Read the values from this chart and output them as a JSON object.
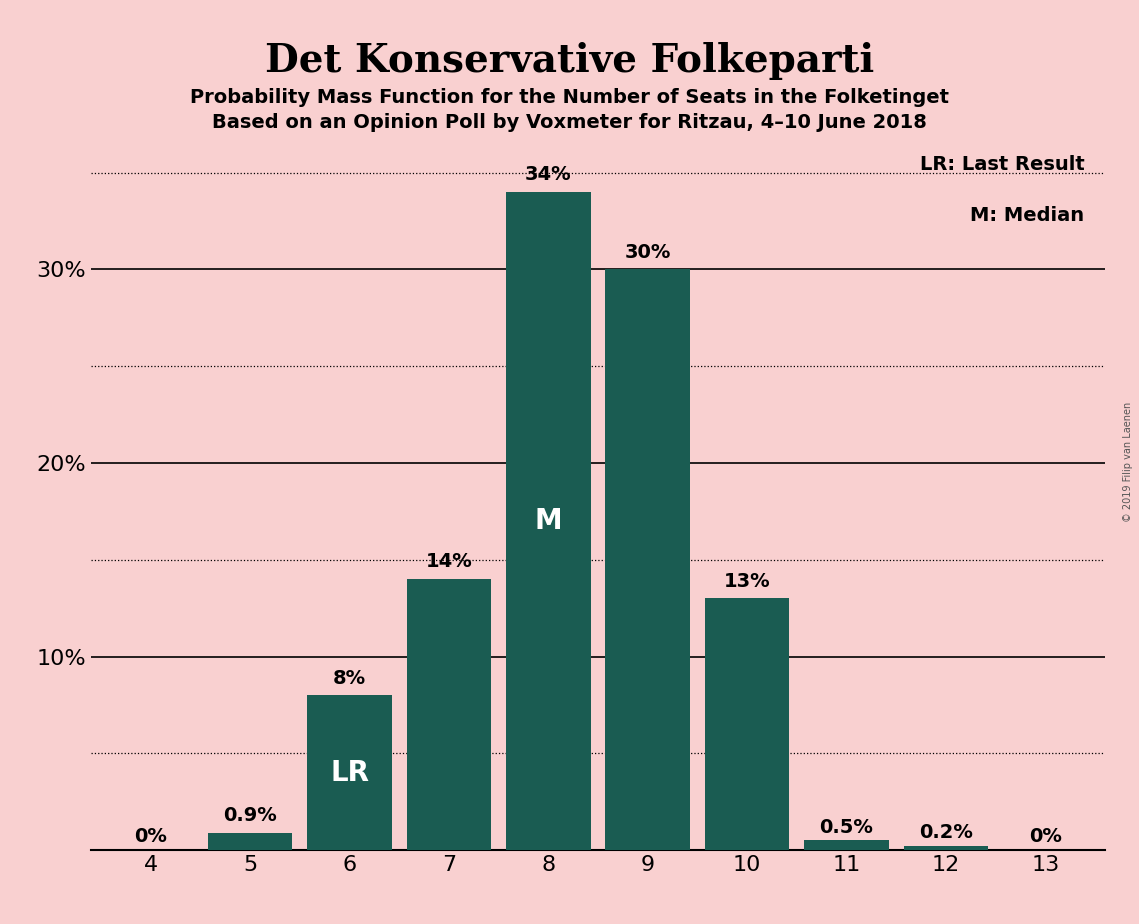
{
  "title": "Det Konservative Folkeparti",
  "subtitle1": "Probability Mass Function for the Number of Seats in the Folketinget",
  "subtitle2": "Based on an Opinion Poll by Voxmeter for Ritzau, 4–10 June 2018",
  "categories": [
    4,
    5,
    6,
    7,
    8,
    9,
    10,
    11,
    12,
    13
  ],
  "values": [
    0.0,
    0.9,
    8.0,
    14.0,
    34.0,
    30.0,
    13.0,
    0.5,
    0.2,
    0.0
  ],
  "bar_color": "#1a5c52",
  "background_color": "#f9d0d0",
  "label_color_outside": "#000000",
  "label_color_inside": "#ffffff",
  "labels": [
    "0%",
    "0.9%",
    "8%",
    "14%",
    "34%",
    "30%",
    "13%",
    "0.5%",
    "0.2%",
    "0%"
  ],
  "median_bar_index": 4,
  "lr_bar_index": 2,
  "median_label": "M",
  "lr_label": "LR",
  "legend_lr": "LR: Last Result",
  "legend_m": "M: Median",
  "copyright": "© 2019 Filip van Laenen",
  "ylim": [
    0,
    37
  ],
  "yticks": [
    0,
    5,
    10,
    15,
    20,
    25,
    30,
    35
  ],
  "ytick_labels_shown": [
    10,
    20,
    30
  ],
  "grid_lines": [
    5,
    10,
    15,
    20,
    25,
    30,
    35
  ],
  "solid_lines": [
    10,
    20,
    30
  ],
  "dotted_lines": [
    5,
    15,
    25,
    35
  ],
  "title_fontsize": 28,
  "subtitle_fontsize": 14,
  "tick_fontsize": 16,
  "label_fontsize": 14,
  "inside_label_fontsize": 20,
  "legend_fontsize": 14
}
